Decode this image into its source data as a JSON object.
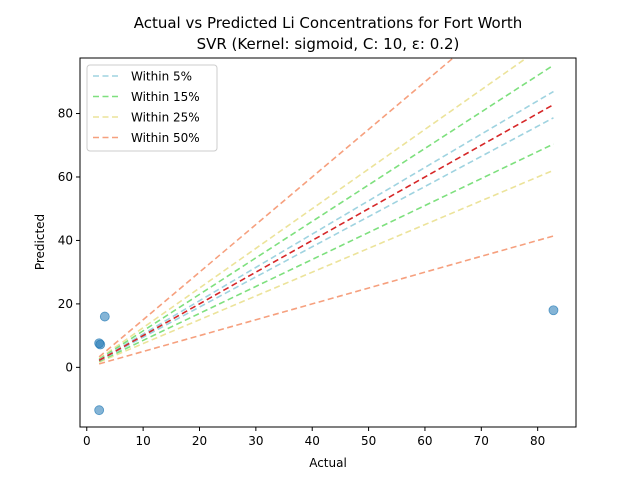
{
  "chart_data": {
    "type": "scatter",
    "title": "Actual vs Predicted Li Concentrations for Fort Worth",
    "subtitle": "SVR (Kernel: sigmoid, C: 10, ε: 0.2)",
    "xlabel": "Actual",
    "ylabel": "Predicted",
    "xlim": [
      -1.2,
      86.8
    ],
    "ylim": [
      -18.8,
      97.5
    ],
    "x_ticks": [
      0,
      10,
      20,
      30,
      40,
      50,
      60,
      70,
      80
    ],
    "y_ticks": [
      0,
      20,
      40,
      60,
      80
    ],
    "grid": false,
    "legend_position": "top-left",
    "points": [
      {
        "x": 2.2,
        "y": 7.6
      },
      {
        "x": 2.4,
        "y": 7.2
      },
      {
        "x": 3.2,
        "y": 16.0
      },
      {
        "x": 2.2,
        "y": -13.5
      },
      {
        "x": 82.8,
        "y": 18.0
      }
    ],
    "point_color": "#1f77b4",
    "identity_line": {
      "x_range": [
        2.2,
        82.8
      ],
      "color": "#d62728"
    },
    "bands": [
      {
        "name": "Within 5%",
        "tolerance": 0.05,
        "color": "#9fd3e0"
      },
      {
        "name": "Within 15%",
        "tolerance": 0.15,
        "color": "#7ee07e"
      },
      {
        "name": "Within 25%",
        "tolerance": 0.25,
        "color": "#ece39a"
      },
      {
        "name": "Within 50%",
        "tolerance": 0.5,
        "color": "#f6a07e"
      }
    ]
  }
}
